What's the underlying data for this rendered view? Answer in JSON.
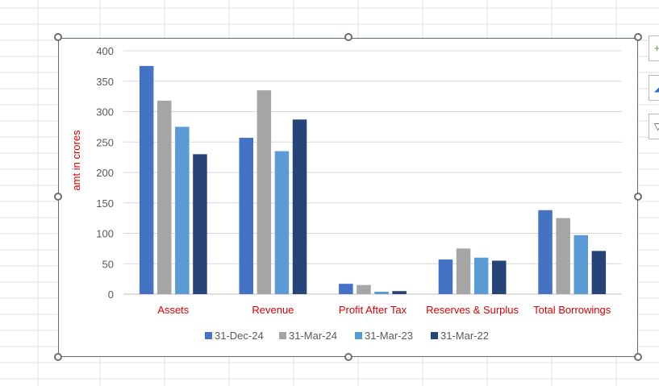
{
  "chart_data": {
    "type": "bar",
    "categories": [
      "Assets",
      "Revenue",
      "Profit After Tax",
      "Reserves & Surplus",
      "Total Borrowings"
    ],
    "series": [
      {
        "name": "31-Dec-24",
        "color": "#4472c4",
        "values": [
          375,
          257,
          17,
          57,
          138
        ]
      },
      {
        "name": "31-Mar-24",
        "color": "#a5a5a5",
        "values": [
          318,
          335,
          15,
          75,
          125
        ]
      },
      {
        "name": "31-Mar-23",
        "color": "#5b9bd5",
        "values": [
          275,
          235,
          4,
          60,
          97
        ]
      },
      {
        "name": "31-Mar-22",
        "color": "#264478",
        "values": [
          230,
          287,
          5,
          55,
          71
        ]
      }
    ],
    "title": "",
    "xlabel": "",
    "ylabel": "amt in crores",
    "ylim": [
      0,
      400
    ],
    "yticks": [
      0,
      50,
      100,
      150,
      200,
      250,
      300,
      350,
      400
    ],
    "grid": true,
    "legend_position": "bottom",
    "label_color": "#e00000"
  },
  "side_buttons": {
    "chart_elements": "+",
    "chart_styles": "◢",
    "chart_filters": "▽"
  }
}
